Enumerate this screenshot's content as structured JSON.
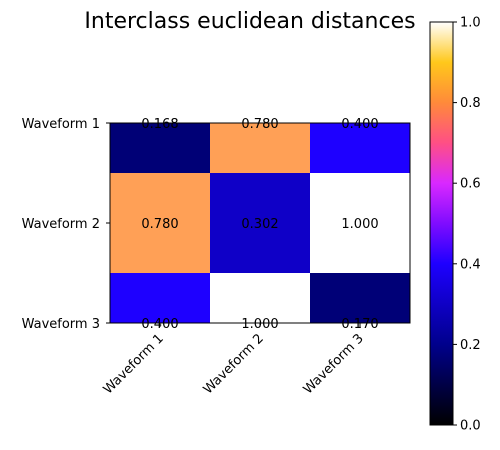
{
  "chart_data": {
    "type": "heatmap",
    "title": "Interclass euclidean distances",
    "x_categories": [
      "Waveform 1",
      "Waveform 2",
      "Waveform 3"
    ],
    "y_categories": [
      "Waveform 1",
      "Waveform 2",
      "Waveform 3"
    ],
    "values": [
      [
        0.168,
        0.78,
        0.4
      ],
      [
        0.78,
        0.302,
        1.0
      ],
      [
        0.4,
        1.0,
        0.17
      ]
    ],
    "value_labels": [
      [
        "0.168",
        "0.780",
        "0.400"
      ],
      [
        "0.780",
        "0.302",
        "1.000"
      ],
      [
        "0.400",
        "1.000",
        "0.170"
      ]
    ],
    "colormap": "gnuplot2",
    "colorbar": {
      "range": [
        0,
        1
      ],
      "ticks": [
        "0.0",
        "0.2",
        "0.4",
        "0.6",
        "0.8",
        "1.0"
      ]
    },
    "xtick_rotation": "45deg",
    "grid": false
  }
}
